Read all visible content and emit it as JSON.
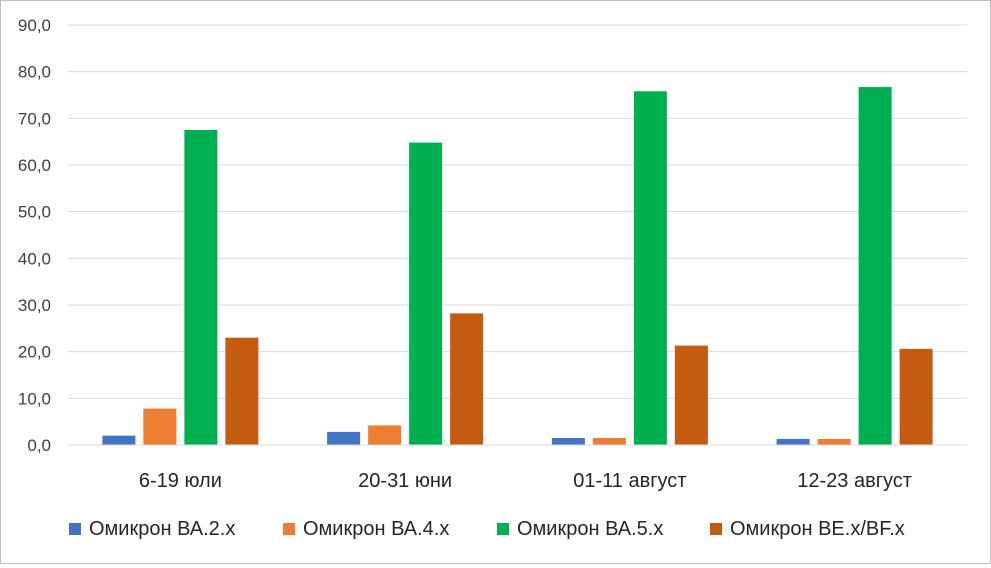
{
  "chart_data": {
    "type": "bar",
    "title": "",
    "xlabel": "",
    "ylabel": "",
    "categories": [
      "6-19 юли",
      "20-31 юни",
      "01-11 август",
      "12-23 август"
    ],
    "ylim": [
      0,
      90
    ],
    "yticks": [
      0,
      10,
      20,
      30,
      40,
      50,
      60,
      70,
      80,
      90
    ],
    "ytick_labels": [
      "0,0",
      "10,0",
      "20,0",
      "30,0",
      "40,0",
      "50,0",
      "60,0",
      "70,0",
      "80,0",
      "90,0"
    ],
    "grid": true,
    "legend": "bottom",
    "series": [
      {
        "name": "Омикрон ВА.2.х",
        "color": "#4472C4",
        "values": [
          2.0,
          2.8,
          1.5,
          1.3
        ]
      },
      {
        "name": "Омикрон ВА.4.х",
        "color": "#ED7D31",
        "values": [
          7.8,
          4.2,
          1.5,
          1.3
        ]
      },
      {
        "name": "Омикрон ВА.5.х",
        "color": "#00B050",
        "values": [
          67.5,
          64.8,
          75.8,
          76.7
        ]
      },
      {
        "name": "Омикрон ВЕ.х/BF.х",
        "color": "#C55A11",
        "values": [
          23.0,
          28.2,
          21.3,
          20.6
        ]
      }
    ]
  }
}
